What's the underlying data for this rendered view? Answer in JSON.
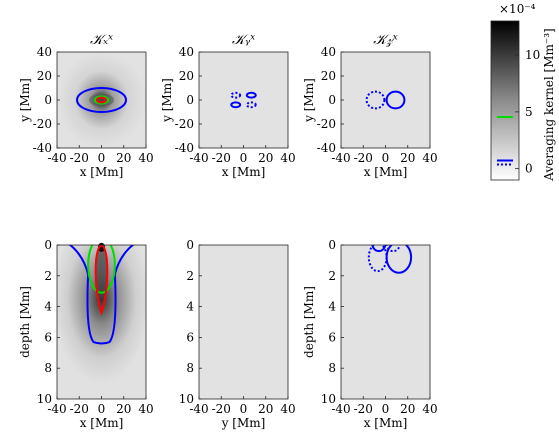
{
  "chart_data": [
    {
      "type": "heatmap",
      "panel": "top-left",
      "title": "𝒦ₓˣ",
      "xlabel": "x [Mm]",
      "ylabel": "y [Mm]",
      "xlim": [
        -40,
        40
      ],
      "ylim": [
        -40,
        40
      ],
      "xticks": [
        "-40",
        "-20",
        "0",
        "20",
        "40"
      ],
      "yticks": [
        "40",
        "20",
        "0",
        "-20",
        "-40"
      ],
      "contours": [
        {
          "color": "#0000ff",
          "style": "solid",
          "shape": "ellipse",
          "cx": 0,
          "cy": 0,
          "rx": 22,
          "ry": 10
        },
        {
          "color": "#00dd00",
          "style": "solid",
          "shape": "ellipse",
          "cx": 0,
          "cy": 0,
          "rx": 6,
          "ry": 3
        },
        {
          "color": "#ff0000",
          "style": "solid",
          "shape": "ellipse",
          "cx": 0,
          "cy": 0,
          "rx": 4,
          "ry": 2
        }
      ]
    },
    {
      "type": "heatmap",
      "panel": "top-middle",
      "title": "𝒦ᵧˣ",
      "xlabel": "x [Mm]",
      "ylabel": "y [Mm]",
      "xlim": [
        -40,
        40
      ],
      "ylim": [
        -40,
        40
      ],
      "xticks": [
        "-40",
        "-20",
        "0",
        "20",
        "40"
      ],
      "yticks": [
        "40",
        "20",
        "0",
        "-20",
        "-40"
      ],
      "contours": [
        {
          "color": "#0000ff",
          "style": "dotted",
          "shape": "ellipse",
          "cx": -7,
          "cy": 4,
          "rx": 4,
          "ry": 2
        },
        {
          "color": "#0000ff",
          "style": "solid",
          "shape": "ellipse",
          "cx": 7,
          "cy": 4,
          "rx": 4,
          "ry": 2
        },
        {
          "color": "#0000ff",
          "style": "solid",
          "shape": "ellipse",
          "cx": -7,
          "cy": -4,
          "rx": 4,
          "ry": 2
        },
        {
          "color": "#0000ff",
          "style": "dotted",
          "shape": "ellipse",
          "cx": 7,
          "cy": -4,
          "rx": 4,
          "ry": 2
        }
      ]
    },
    {
      "type": "heatmap",
      "panel": "top-right",
      "title": "𝒦𝓏ˣ",
      "xlabel": "x [Mm]",
      "ylabel": "y [Mm]",
      "xlim": [
        -40,
        40
      ],
      "ylim": [
        -40,
        40
      ],
      "xticks": [
        "-40",
        "-20",
        "0",
        "20",
        "40"
      ],
      "yticks": [
        "40",
        "20",
        "0",
        "-20",
        "-40"
      ],
      "contours": [
        {
          "color": "#0000ff",
          "style": "dotted",
          "shape": "ellipse",
          "cx": -9,
          "cy": 0,
          "rx": 8,
          "ry": 7
        },
        {
          "color": "#0000ff",
          "style": "solid",
          "shape": "ellipse",
          "cx": 9,
          "cy": 0,
          "rx": 8,
          "ry": 7
        }
      ]
    },
    {
      "type": "heatmap",
      "panel": "bottom-left",
      "xlabel": "x [Mm]",
      "ylabel": "depth [Mm]",
      "xlim": [
        -40,
        40
      ],
      "ylim": [
        10,
        0
      ],
      "xticks": [
        "-40",
        "-20",
        "0",
        "20",
        "40"
      ],
      "yticks": [
        "0",
        "2",
        "4",
        "6",
        "8",
        "10"
      ],
      "contours": [
        {
          "color": "#0000ff",
          "style": "solid",
          "shape": "flask",
          "top": -0.3,
          "bottom": 6.3,
          "halfwidth_top": 30,
          "halfwidth_bottom": 12
        },
        {
          "color": "#00dd00",
          "style": "solid",
          "shape": "ellipse",
          "cx": 0,
          "cy": 1.3,
          "rx": 12,
          "ry": 1.8
        },
        {
          "color": "#ff0000",
          "style": "solid",
          "shape": "drop",
          "top": 0,
          "bottom": 4.4,
          "halfwidth": 7
        }
      ]
    },
    {
      "type": "heatmap",
      "panel": "bottom-middle",
      "xlabel": "y [Mm]",
      "ylabel": "",
      "xlim": [
        -40,
        40
      ],
      "ylim": [
        10,
        0
      ],
      "xticks": [
        "-40",
        "-20",
        "0",
        "20",
        "40"
      ],
      "yticks": [
        "0",
        "2",
        "4",
        "6",
        "8",
        "10"
      ],
      "contours": []
    },
    {
      "type": "heatmap",
      "panel": "bottom-right",
      "xlabel": "x [Mm]",
      "ylabel": "depth [Mm]",
      "xlim": [
        -40,
        40
      ],
      "ylim": [
        10,
        0
      ],
      "xticks": [
        "-40",
        "-20",
        "0",
        "20",
        "40"
      ],
      "yticks": [
        "0",
        "2",
        "4",
        "6",
        "8",
        "10"
      ],
      "contours": [
        {
          "color": "#0000ff",
          "style": "solid",
          "shape": "ellipse",
          "cx": -6,
          "cy": -0.1,
          "rx": 6,
          "ry": 0.5
        },
        {
          "color": "#0000ff",
          "style": "dotted",
          "shape": "ellipse",
          "cx": 7,
          "cy": -0.1,
          "rx": 6,
          "ry": 0.5
        },
        {
          "color": "#0000ff",
          "style": "dotted",
          "shape": "ellipse",
          "cx": -7,
          "cy": 0.8,
          "rx": 8,
          "ry": 0.9
        },
        {
          "color": "#0000ff",
          "style": "solid",
          "shape": "ellipse",
          "cx": 12,
          "cy": 0.8,
          "rx": 11,
          "ry": 1.0
        }
      ]
    }
  ],
  "colorbar": {
    "label": "Averaging kernel [Mm⁻³]",
    "scale_label": "×10⁻⁴",
    "ticks": [
      "0",
      "5",
      "10"
    ],
    "range": [
      -1,
      13
    ],
    "colormap": "grayscale white→black",
    "legend_lines": [
      {
        "color": "#00dd00",
        "style": "solid",
        "value_fraction_of_colorbar": 0.18
      },
      {
        "color": "#0000ff",
        "style": "solid+dotted",
        "value_fraction_of_colorbar": 0.05
      }
    ]
  }
}
